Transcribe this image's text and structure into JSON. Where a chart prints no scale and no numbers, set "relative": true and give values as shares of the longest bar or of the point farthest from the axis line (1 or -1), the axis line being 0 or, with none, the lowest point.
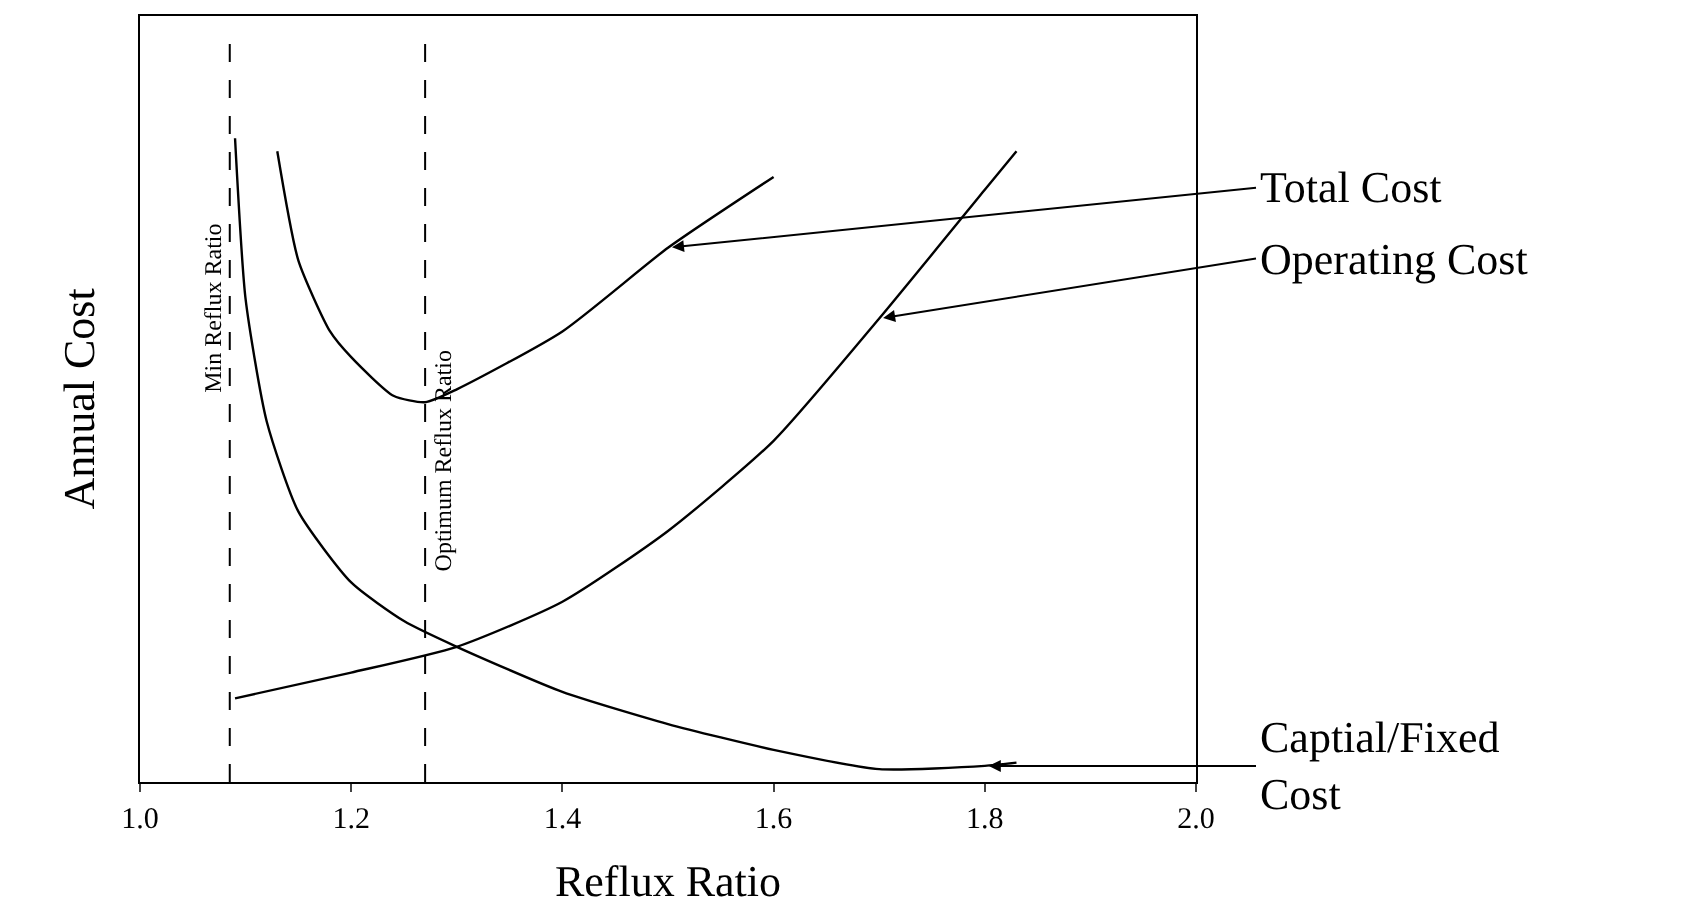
{
  "chart_data": {
    "type": "line",
    "relative": true,
    "xlabel": "Reflux Ratio",
    "ylabel": "Annual Cost",
    "xlim": [
      1.0,
      2.0
    ],
    "xticks": [
      {
        "value": 1.0,
        "label": "1.0"
      },
      {
        "value": 1.2,
        "label": "1.2"
      },
      {
        "value": 1.4,
        "label": "1.4"
      },
      {
        "value": 1.6,
        "label": "1.6"
      },
      {
        "value": 1.8,
        "label": "1.8"
      },
      {
        "value": 2.0,
        "label": "2.0"
      }
    ],
    "tick_labels": "x",
    "marker": "none",
    "line_style": "solid",
    "series": [
      {
        "color": "#000000",
        "x": [
          1.13,
          1.15,
          1.18,
          1.2,
          1.24,
          1.27,
          1.3,
          1.4,
          1.5,
          1.6
        ],
        "values": [
          0.98,
          0.81,
          0.7,
          0.66,
          0.6,
          0.59,
          0.61,
          0.7,
          0.83,
          0.94
        ]
      },
      {
        "color": "#000000",
        "x": [
          1.09,
          1.2,
          1.3,
          1.4,
          1.5,
          1.6,
          1.7,
          1.8,
          1.83
        ],
        "values": [
          0.13,
          0.17,
          0.21,
          0.28,
          0.39,
          0.53,
          0.72,
          0.92,
          0.98
        ]
      },
      {
        "color": "#000000",
        "x": [
          1.09,
          1.1,
          1.12,
          1.15,
          1.2,
          1.25,
          1.3,
          1.4,
          1.5,
          1.6,
          1.7,
          1.8,
          1.83
        ],
        "values": [
          1.0,
          0.75,
          0.56,
          0.42,
          0.31,
          0.25,
          0.21,
          0.14,
          0.09,
          0.05,
          0.02,
          0.025,
          0.03
        ]
      }
    ],
    "ref_lines": [
      {
        "axis": "x",
        "value": 1.085,
        "label": "Min Reflux Ratio",
        "line_style": "dashed",
        "color": "#000000"
      },
      {
        "axis": "x",
        "value": 1.27,
        "label": "Optimum Reflux Ratio",
        "line_style": "dashed",
        "color": "#000000"
      }
    ],
    "annotations": [
      {
        "text": "Total Cost",
        "x": 1.5,
        "y": 0.83
      },
      {
        "text": "Operating Cost",
        "x": 1.7,
        "y": 0.72
      },
      {
        "text": "Captial/Fixed Cost",
        "x": 1.8,
        "y": 0.025
      }
    ]
  }
}
